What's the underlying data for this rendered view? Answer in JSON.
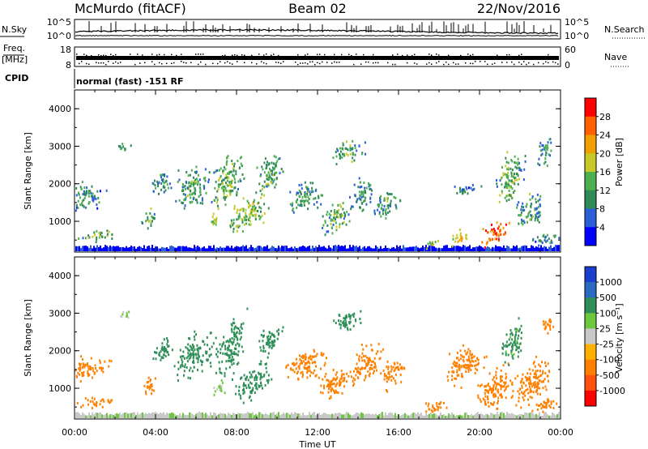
{
  "header": {
    "station": "McMurdo (fitACF)",
    "beam": "Beam 02",
    "date": "22/Nov/2016"
  },
  "noise_panel": {
    "left_label": "N.Sky",
    "right_label": "N.Search",
    "left_ticks": [
      "10^5",
      "10^0"
    ],
    "right_ticks": [
      "10^5",
      "10^0"
    ]
  },
  "freq_panel": {
    "left_label_top": "Freq.",
    "left_label_bottom": "[MHz]",
    "right_label": "Nave",
    "left_ticks": [
      "18",
      "8"
    ],
    "right_ticks": [
      "60",
      "0"
    ]
  },
  "cpid": {
    "label": "CPID",
    "text": "normal (fast) -151 RF"
  },
  "x_axis": {
    "label": "Time UT",
    "ticks": [
      "00:00",
      "04:00",
      "08:00",
      "12:00",
      "16:00",
      "20:00",
      "00:00"
    ]
  },
  "chart_data": [
    {
      "type": "heatmap",
      "quantity": "Power",
      "xlabel": "Time UT",
      "ylabel": "Slant Range [km]",
      "y_ticks": [
        "1000",
        "2000",
        "3000",
        "4000"
      ],
      "ylim": [
        180,
        4500
      ],
      "xlim_hours": [
        0,
        24
      ],
      "colorbar_label": "Power [dB]",
      "colorbar_ticks": [
        "4",
        "8",
        "12",
        "16",
        "20",
        "24",
        "28"
      ],
      "colorbar_colors": [
        "#0000ff",
        "#2a5fd8",
        "#2e8b57",
        "#4caf50",
        "#c8c82a",
        "#f0a000",
        "#ff6000",
        "#ff0000"
      ],
      "regions": [
        {
          "t": 1.1,
          "r": 650,
          "dt": 1.6,
          "dr": 220,
          "v": 14
        },
        {
          "t": 0.5,
          "r": 1700,
          "dt": 1.5,
          "dr": 600,
          "v": 10
        },
        {
          "t": 2.4,
          "r": 3000,
          "dt": 0.7,
          "dr": 200,
          "v": 11
        },
        {
          "t": 3.7,
          "r": 1100,
          "dt": 0.7,
          "dr": 400,
          "v": 14
        },
        {
          "t": 4.2,
          "r": 2050,
          "dt": 0.9,
          "dr": 500,
          "v": 11
        },
        {
          "t": 5.7,
          "r": 1900,
          "dt": 1.5,
          "dr": 900,
          "v": 12
        },
        {
          "t": 6.9,
          "r": 1050,
          "dt": 0.5,
          "dr": 300,
          "v": 15
        },
        {
          "t": 7.5,
          "r": 2100,
          "dt": 1.3,
          "dr": 1200,
          "v": 14
        },
        {
          "t": 8.6,
          "r": 1250,
          "dt": 1.6,
          "dr": 750,
          "v": 16
        },
        {
          "t": 9.6,
          "r": 2300,
          "dt": 1.2,
          "dr": 800,
          "v": 13
        },
        {
          "t": 11.3,
          "r": 1700,
          "dt": 1.4,
          "dr": 700,
          "v": 12
        },
        {
          "t": 12.9,
          "r": 1150,
          "dt": 1.2,
          "dr": 700,
          "v": 13
        },
        {
          "t": 13.5,
          "r": 2900,
          "dt": 1.3,
          "dr": 500,
          "v": 13
        },
        {
          "t": 14.2,
          "r": 1750,
          "dt": 1.0,
          "dr": 700,
          "v": 11
        },
        {
          "t": 15.4,
          "r": 1500,
          "dt": 1.1,
          "dr": 600,
          "v": 12
        },
        {
          "t": 17.6,
          "r": 450,
          "dt": 0.8,
          "dr": 180,
          "v": 18
        },
        {
          "t": 18.9,
          "r": 600,
          "dt": 0.8,
          "dr": 300,
          "v": 20
        },
        {
          "t": 19.2,
          "r": 1850,
          "dt": 1.2,
          "dr": 250,
          "v": 9
        },
        {
          "t": 20.7,
          "r": 700,
          "dt": 1.2,
          "dr": 500,
          "v": 27
        },
        {
          "t": 21.5,
          "r": 2200,
          "dt": 1.1,
          "dr": 1200,
          "v": 14
        },
        {
          "t": 22.4,
          "r": 1300,
          "dt": 1.3,
          "dr": 700,
          "v": 12
        },
        {
          "t": 23.2,
          "r": 2900,
          "dt": 0.6,
          "dr": 700,
          "v": 11
        },
        {
          "t": 23.3,
          "r": 550,
          "dt": 1.3,
          "dr": 250,
          "v": 10
        }
      ]
    },
    {
      "type": "heatmap",
      "quantity": "Velocity",
      "xlabel": "Time UT",
      "ylabel": "Slant Range [km]",
      "y_ticks": [
        "1000",
        "2000",
        "3000",
        "4000"
      ],
      "ylim": [
        180,
        4500
      ],
      "xlim_hours": [
        0,
        24
      ],
      "colorbar_label": "Velocity [m s⁻¹]",
      "colorbar_ticks": [
        "1000",
        "500",
        "100",
        "25",
        "-25",
        "-100",
        "-500",
        "-1000"
      ],
      "colorbar_colors": [
        "#1a3fcc",
        "#2a6abf",
        "#2f8f58",
        "#6cc83c",
        "#c8c8c8",
        "#ffb000",
        "#ff8000",
        "#ff5010",
        "#ff0000"
      ],
      "regions": [
        {
          "t": 1.1,
          "r": 650,
          "dt": 1.6,
          "dr": 220,
          "v": -300
        },
        {
          "t": 0.6,
          "r": 1550,
          "dt": 1.7,
          "dr": 500,
          "v": -250
        },
        {
          "t": 2.5,
          "r": 3000,
          "dt": 0.6,
          "dr": 200,
          "v": 10
        },
        {
          "t": 3.7,
          "r": 1100,
          "dt": 0.7,
          "dr": 400,
          "v": -250
        },
        {
          "t": 4.3,
          "r": 2050,
          "dt": 1.0,
          "dr": 500,
          "v": 200
        },
        {
          "t": 5.9,
          "r": 1900,
          "dt": 1.6,
          "dr": 900,
          "v": 250
        },
        {
          "t": 7.1,
          "r": 1000,
          "dt": 0.6,
          "dr": 350,
          "v": 40
        },
        {
          "t": 7.7,
          "r": 2100,
          "dt": 1.2,
          "dr": 1200,
          "v": 300
        },
        {
          "t": 8.8,
          "r": 1200,
          "dt": 1.6,
          "dr": 700,
          "v": 250
        },
        {
          "t": 9.6,
          "r": 2300,
          "dt": 1.0,
          "dr": 700,
          "v": 200
        },
        {
          "t": 11.4,
          "r": 1650,
          "dt": 1.8,
          "dr": 650,
          "v": -300
        },
        {
          "t": 12.9,
          "r": 1150,
          "dt": 1.3,
          "dr": 700,
          "v": -280
        },
        {
          "t": 13.4,
          "r": 2850,
          "dt": 1.1,
          "dr": 500,
          "v": 250
        },
        {
          "t": 14.4,
          "r": 1700,
          "dt": 1.4,
          "dr": 800,
          "v": -300
        },
        {
          "t": 15.7,
          "r": 1450,
          "dt": 1.0,
          "dr": 600,
          "v": -250
        },
        {
          "t": 17.7,
          "r": 500,
          "dt": 1.0,
          "dr": 300,
          "v": -300
        },
        {
          "t": 19.2,
          "r": 1650,
          "dt": 1.6,
          "dr": 800,
          "v": -320
        },
        {
          "t": 20.8,
          "r": 1000,
          "dt": 1.6,
          "dr": 900,
          "v": -300
        },
        {
          "t": 21.6,
          "r": 2200,
          "dt": 1.0,
          "dr": 900,
          "v": 150
        },
        {
          "t": 22.6,
          "r": 1200,
          "dt": 1.6,
          "dr": 900,
          "v": -300
        },
        {
          "t": 23.3,
          "r": 2700,
          "dt": 0.5,
          "dr": 500,
          "v": -250
        },
        {
          "t": 23.3,
          "r": 600,
          "dt": 1.3,
          "dr": 300,
          "v": -200
        }
      ]
    }
  ]
}
